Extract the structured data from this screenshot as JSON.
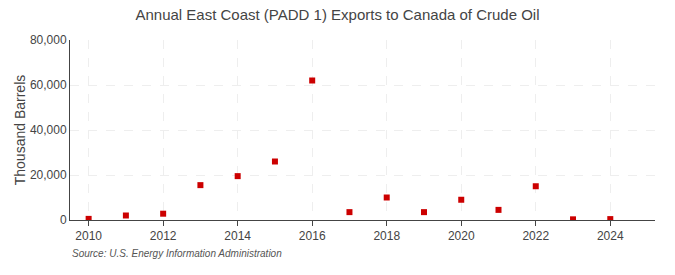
{
  "chart_data": {
    "type": "scatter",
    "title": "Annual East Coast (PADD 1) Exports to Canada of Crude Oil",
    "ylabel": "Thousand Barrels",
    "annotations": [
      "Source: U.S. Energy Information Administration"
    ],
    "x": [
      2010,
      2011,
      2012,
      2013,
      2014,
      2015,
      2016,
      2017,
      2018,
      2019,
      2020,
      2021,
      2022,
      2023,
      2024
    ],
    "values": [
      500,
      2000,
      2800,
      15500,
      19500,
      26000,
      62000,
      3500,
      10000,
      3500,
      9000,
      4500,
      15000,
      300,
      400
    ],
    "color": "#cc0000",
    "marker": "square",
    "xlim": [
      2009.5,
      2025.2
    ],
    "xticks": [
      2010,
      2012,
      2014,
      2016,
      2018,
      2020,
      2022,
      2024
    ],
    "ylim": [
      0,
      80000
    ],
    "yticks": [
      0,
      {
        "value": 20000,
        "label": "20,000"
      },
      {
        "value": 40000,
        "label": "40,000"
      },
      {
        "value": 60000,
        "label": "60,000"
      },
      {
        "value": 80000,
        "label": "80,000"
      }
    ],
    "grid": true
  }
}
